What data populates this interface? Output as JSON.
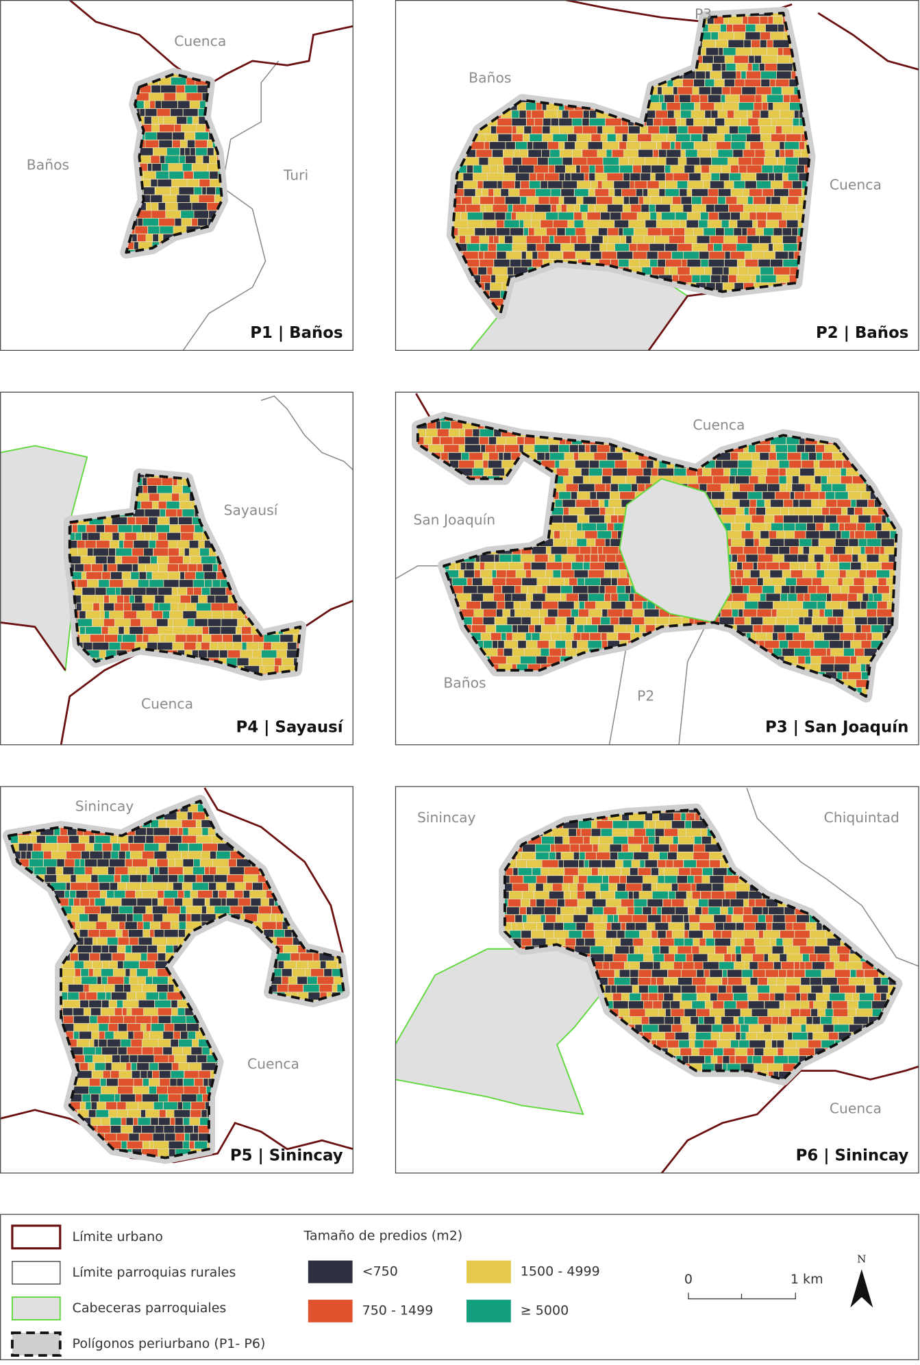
{
  "panels": [
    {
      "title": "P1 | Baños",
      "places": [
        "Cuenca",
        "Baños",
        "Turi"
      ]
    },
    {
      "title": "P2 | Baños",
      "places": [
        "P3",
        "Baños",
        "Cuenca"
      ]
    },
    {
      "title": "P4 | Sayausí",
      "places": [
        "Sayausí",
        "Cuenca"
      ]
    },
    {
      "title": "P3 | San Joaquín",
      "places": [
        "Cuenca",
        "San Joaquín",
        "Baños",
        "P2"
      ]
    },
    {
      "title": "P5 | Sinincay",
      "places": [
        "Sinincay",
        "Cuenca"
      ]
    },
    {
      "title": "P6 | Sinincay",
      "places": [
        "Sinincay",
        "Chiquintad",
        "Cuenca"
      ]
    }
  ],
  "legend": {
    "lines": [
      "Límite urbano",
      "Límite parroquias rurales",
      "Cabeceras parroquiales",
      "Polígonos periurbano (P1- P6)"
    ],
    "classes_title": "Tamaño de predios (m2)",
    "classes": [
      {
        "label": "<750",
        "color": "#2e3142"
      },
      {
        "label": "750 - 1499",
        "color": "#e0522e"
      },
      {
        "label": "1500 - 4999",
        "color": "#e5c94b"
      },
      {
        "label": "≥ 5000",
        "color": "#13a07e"
      }
    ],
    "scale": [
      "0",
      "1 km"
    ],
    "north": "N"
  }
}
